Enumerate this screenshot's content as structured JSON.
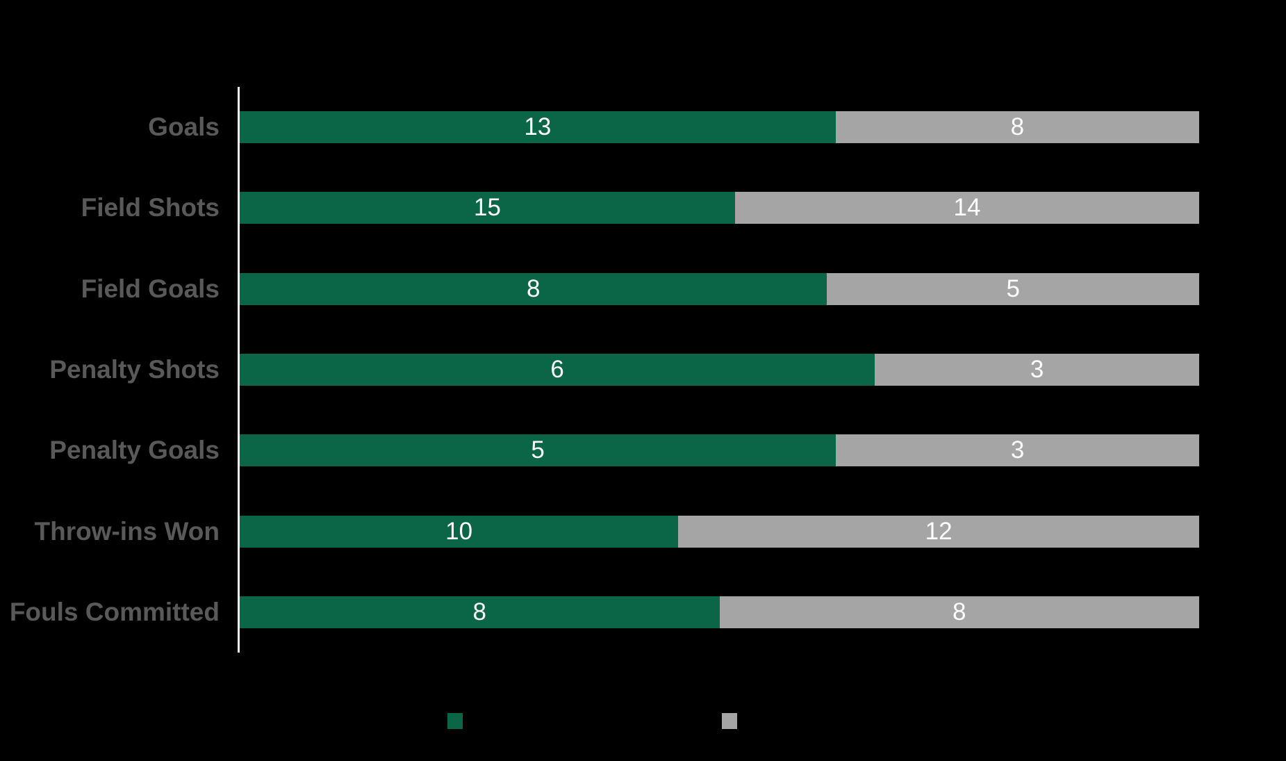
{
  "colors": {
    "background": "#000000",
    "green": "#0A6647",
    "gray": "#A5A5A5",
    "category_label": "#595959",
    "value_label": "#FFFFFF",
    "axis_line": "#EDEDED"
  },
  "chart_data": {
    "type": "bar",
    "orientation": "horizontal",
    "stacking": "100%",
    "title": "",
    "xlabel": "",
    "ylabel": "",
    "categories": [
      "Goals",
      "Field Shots",
      "Field Goals",
      "Penalty Shots",
      "Penalty Goals",
      "Throw-ins Won",
      "Fouls Committed"
    ],
    "series": [
      {
        "name": "green",
        "color": "#0A6647",
        "values": [
          13,
          15,
          8,
          6,
          5,
          10,
          8
        ]
      },
      {
        "name": "gray",
        "color": "#A5A5A5",
        "values": [
          8,
          14,
          5,
          3,
          3,
          12,
          8
        ]
      }
    ],
    "data_labels": "white, centered in each segment",
    "grid": "off",
    "axis": {
      "vertical_line_visible": true,
      "ticks_visible": false
    },
    "legend_position": "bottom-center",
    "legend": {
      "labels_visible": false,
      "swatches": [
        {
          "name": "green-swatch",
          "color": "#0A6647"
        },
        {
          "name": "gray-swatch",
          "color": "#A5A5A5"
        }
      ]
    }
  }
}
